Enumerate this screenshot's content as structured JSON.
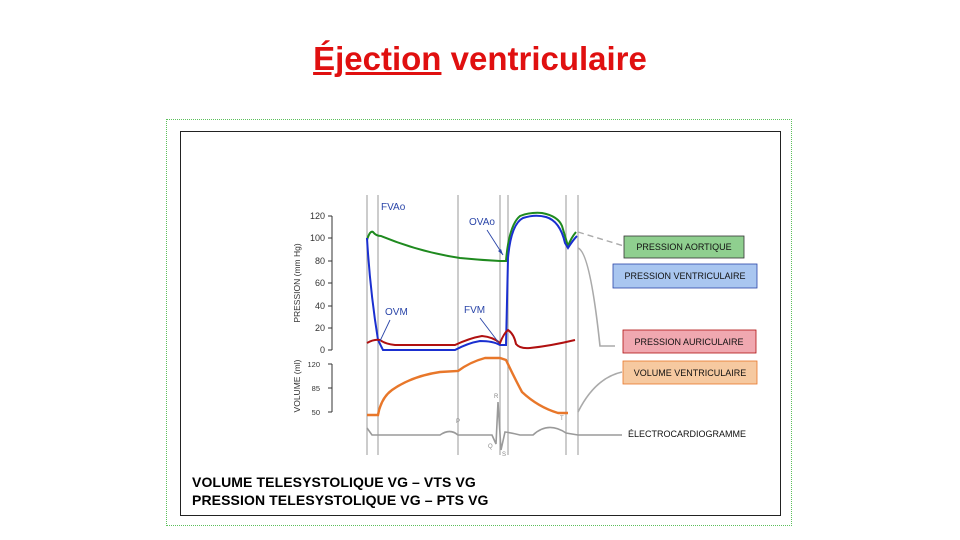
{
  "slide": {
    "title_part1": "Éjection",
    "title_part2": " ventriculaire"
  },
  "diagram": {
    "axes": {
      "pressure_label": "PRESSION (mm Hg)",
      "pressure_ticks": [
        "120",
        "100",
        "80",
        "60",
        "40",
        "20",
        "0"
      ],
      "volume_label": "VOLUME (ml)",
      "volume_ticks": [
        "120",
        "85",
        "50"
      ]
    },
    "annotations": {
      "fvao": "FVAo",
      "ovao": "OVAo",
      "ovm": "OVM",
      "fvm": "FVM"
    },
    "ecg_waves": [
      "P",
      "Q",
      "R",
      "S",
      "T"
    ],
    "legend": {
      "aortic": "PRESSION AORTIQUE",
      "ventricular": "PRESSION VENTRICULAIRE",
      "atrial": "PRESSION AURICULAIRE",
      "volume": "VOLUME VENTRICULAIRE",
      "ecg": "ÉLECTROCARDIOGRAMME"
    },
    "colors": {
      "aortic": "#1f8a1f",
      "ventricular": "#1a2fd0",
      "atrial": "#b01010",
      "volume": "#e8772a",
      "ecg": "#9a9a9a",
      "aortic_box": "#8fcf8f",
      "ventricular_box": "#a9c6f0",
      "atrial_box": "#f0a8b0",
      "volume_box": "#f6c9a0"
    }
  },
  "captions": {
    "line1": "VOLUME TELESYSTOLIQUE VG – VTS VG",
    "line2": "PRESSION TELESYSTOLIQUE VG – PTS VG"
  }
}
